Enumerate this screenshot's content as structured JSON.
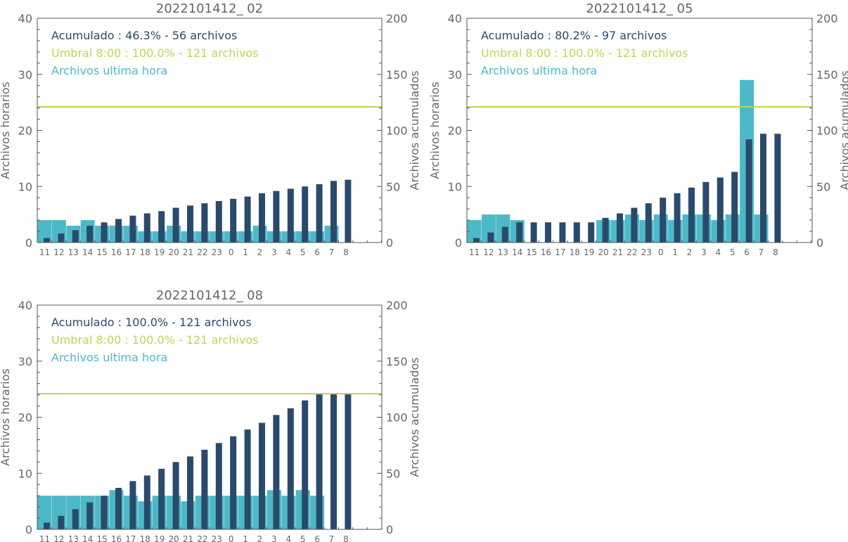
{
  "colors": {
    "hourly": "#4db8c8",
    "cumulative": "#2a4a6b",
    "threshold": "#c5d154",
    "axis": "#555555",
    "text": "#666666"
  },
  "chart_data": [
    {
      "type": "bar",
      "title": "2022101412_ 02",
      "ylabel_left": "Archivos horarios",
      "ylabel_right": "Archivos acumulados",
      "ylim_left": [
        0,
        40
      ],
      "ylim_right": [
        0,
        200
      ],
      "yticks_left": [
        "0",
        "10",
        "20",
        "30",
        "40"
      ],
      "yticks_right": [
        "0",
        "50",
        "100",
        "150",
        "200"
      ],
      "categories": [
        "11",
        "12",
        "13",
        "14",
        "15",
        "16",
        "17",
        "18",
        "19",
        "20",
        "21",
        "22",
        "23",
        "0",
        "1",
        "2",
        "3",
        "4",
        "5",
        "6",
        "7",
        "8"
      ],
      "legend": [
        {
          "label": "Acumulado : 46.3% - 56 archivos",
          "color": "#2a4a6b"
        },
        {
          "label": "Umbral 8:00 : 100.0% - 121 archivos",
          "color": "#c5d154"
        },
        {
          "label": "Archivos ultima hora",
          "color": "#4db8c8"
        }
      ],
      "threshold": 121,
      "series": [
        {
          "name": "Archivos ultima hora",
          "axis": "left",
          "values": [
            4,
            4,
            3,
            4,
            3,
            3,
            3,
            2,
            2,
            3,
            2,
            2,
            2,
            2,
            2,
            3,
            2,
            2,
            2,
            2,
            3,
            null
          ]
        },
        {
          "name": "Acumulado",
          "axis": "right",
          "values": [
            4,
            8,
            11,
            15,
            18,
            21,
            24,
            26,
            28,
            31,
            33,
            35,
            37,
            39,
            41,
            44,
            46,
            48,
            50,
            52,
            55,
            56
          ]
        }
      ]
    },
    {
      "type": "bar",
      "title": "2022101412_ 05",
      "ylabel_left": "Archivos horarios",
      "ylabel_right": "Archivos acumulados",
      "ylim_left": [
        0,
        40
      ],
      "ylim_right": [
        0,
        200
      ],
      "yticks_left": [
        "0",
        "10",
        "20",
        "30",
        "40"
      ],
      "yticks_right": [
        "0",
        "50",
        "100",
        "150",
        "200"
      ],
      "categories": [
        "11",
        "12",
        "13",
        "14",
        "15",
        "16",
        "17",
        "18",
        "19",
        "20",
        "21",
        "22",
        "23",
        "0",
        "1",
        "2",
        "3",
        "4",
        "5",
        "6",
        "7",
        "8"
      ],
      "legend": [
        {
          "label": "Acumulado : 80.2% - 97 archivos",
          "color": "#2a4a6b"
        },
        {
          "label": "Umbral 8:00 : 100.0% - 121 archivos",
          "color": "#c5d154"
        },
        {
          "label": "Archivos ultima hora",
          "color": "#4db8c8"
        }
      ],
      "threshold": 121,
      "series": [
        {
          "name": "Archivos ultima hora",
          "axis": "left",
          "values": [
            4,
            5,
            5,
            4,
            null,
            null,
            null,
            null,
            null,
            4,
            4,
            5,
            4,
            5,
            4,
            5,
            5,
            4,
            5,
            29,
            5,
            null
          ]
        },
        {
          "name": "Acumulado",
          "axis": "right",
          "values": [
            4,
            9,
            14,
            18,
            18,
            18,
            18,
            18,
            18,
            22,
            26,
            31,
            35,
            40,
            44,
            49,
            54,
            58,
            63,
            92,
            97,
            97
          ]
        }
      ]
    },
    {
      "type": "bar",
      "title": "2022101412_ 08",
      "ylabel_left": "Archivos horarios",
      "ylabel_right": "Archivos acumulados",
      "ylim_left": [
        0,
        40
      ],
      "ylim_right": [
        0,
        200
      ],
      "yticks_left": [
        "0",
        "10",
        "20",
        "30",
        "40"
      ],
      "yticks_right": [
        "0",
        "50",
        "100",
        "150",
        "200"
      ],
      "categories": [
        "11",
        "12",
        "13",
        "14",
        "15",
        "16",
        "17",
        "18",
        "19",
        "20",
        "21",
        "22",
        "23",
        "0",
        "1",
        "2",
        "3",
        "4",
        "5",
        "6",
        "7",
        "8"
      ],
      "legend": [
        {
          "label": "Acumulado : 100.0% - 121 archivos",
          "color": "#2a4a6b"
        },
        {
          "label": "Umbral 8:00 : 100.0% - 121 archivos",
          "color": "#c5d154"
        },
        {
          "label": "Archivos ultima hora",
          "color": "#4db8c8"
        }
      ],
      "threshold": 121,
      "series": [
        {
          "name": "Archivos ultima hora",
          "axis": "left",
          "values": [
            6,
            6,
            6,
            6,
            6,
            7,
            6,
            5,
            6,
            6,
            5,
            6,
            6,
            6,
            6,
            6,
            7,
            6,
            7,
            6,
            null,
            null
          ]
        },
        {
          "name": "Acumulado",
          "axis": "right",
          "values": [
            6,
            12,
            18,
            24,
            30,
            37,
            43,
            48,
            54,
            60,
            65,
            71,
            77,
            83,
            89,
            95,
            102,
            108,
            115,
            121,
            121,
            121
          ]
        }
      ]
    }
  ]
}
